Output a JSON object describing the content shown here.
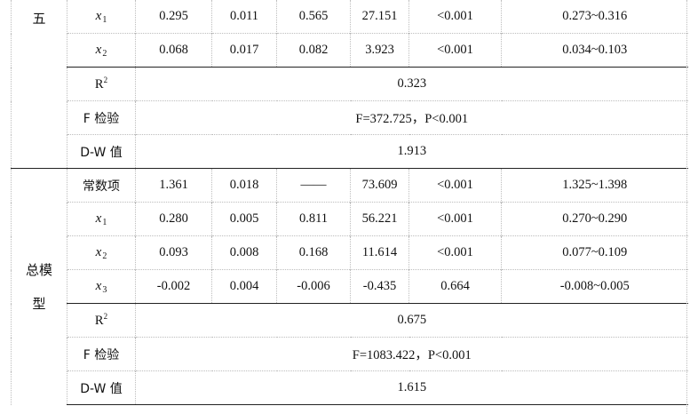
{
  "table": {
    "groups": [
      {
        "label": "五",
        "rows": [
          {
            "var": "x",
            "sub": "1",
            "b": "0.295",
            "se": "0.011",
            "beta": "0.565",
            "t": "27.151",
            "p": "<0.001",
            "ci": "0.273~0.316"
          },
          {
            "var": "x",
            "sub": "2",
            "b": "0.068",
            "se": "0.017",
            "beta": "0.082",
            "t": "3.923",
            "p": "<0.001",
            "ci": "0.034~0.103"
          }
        ],
        "r2_label": "R",
        "r2_sup": "2",
        "r2": "0.323",
        "f_label": "F 检验",
        "f": "F=372.725，P<0.001",
        "dw_label": "D-W 值",
        "dw": "1.913"
      },
      {
        "label_line1": "总模",
        "label_line2": "型",
        "const": {
          "label": "常数项",
          "b": "1.361",
          "se": "0.018",
          "beta": "——",
          "t": "73.609",
          "p": "<0.001",
          "ci": "1.325~1.398"
        },
        "rows": [
          {
            "var": "x",
            "sub": "1",
            "b": "0.280",
            "se": "0.005",
            "beta": "0.811",
            "t": "56.221",
            "p": "<0.001",
            "ci": "0.270~0.290"
          },
          {
            "var": "x",
            "sub": "2",
            "b": "0.093",
            "se": "0.008",
            "beta": "0.168",
            "t": "11.614",
            "p": "<0.001",
            "ci": "0.077~0.109"
          },
          {
            "var": "x",
            "sub": "3",
            "b": "-0.002",
            "se": "0.004",
            "beta": "-0.006",
            "t": "-0.435",
            "p": "0.664",
            "ci": "-0.008~0.005"
          }
        ],
        "r2_label": "R",
        "r2_sup": "2",
        "r2": "0.675",
        "f_label": "F 检验",
        "f": "F=1083.422，P<0.001",
        "dw_label": "D-W 值",
        "dw": "1.615"
      }
    ]
  }
}
